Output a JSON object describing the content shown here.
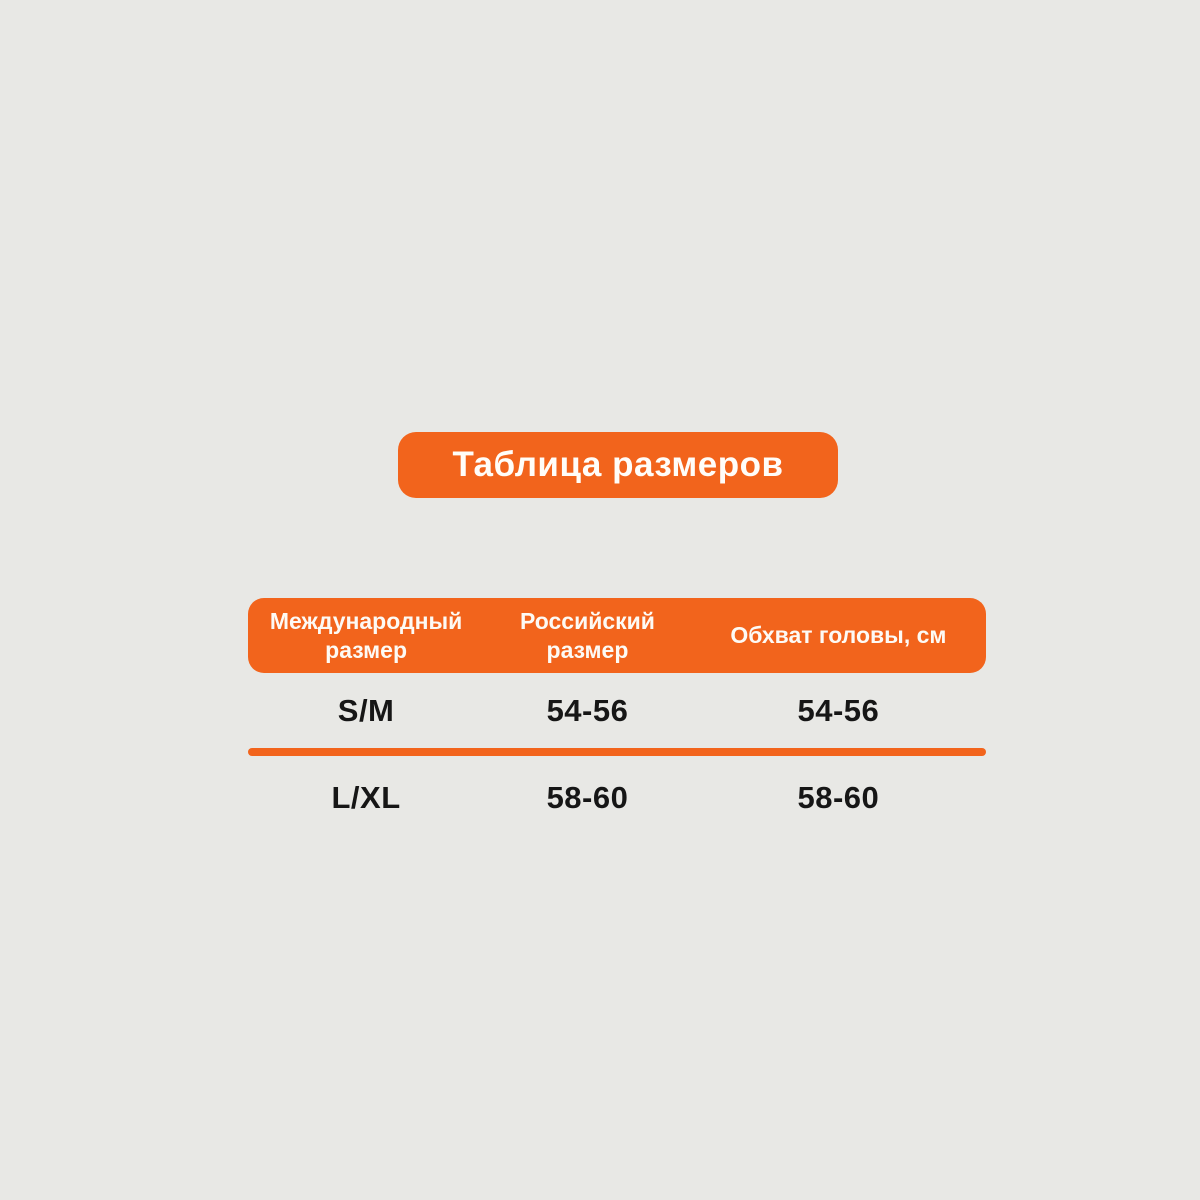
{
  "page": {
    "background_color": "#e8e8e5",
    "accent_color": "#f2641c",
    "text_color": "#161616"
  },
  "title": {
    "label": "Таблица размеров"
  },
  "table": {
    "header": {
      "columns": [
        {
          "label": "Международный размер"
        },
        {
          "label": "Российский размер"
        },
        {
          "label": "Обхват головы, см"
        }
      ]
    },
    "rows": [
      {
        "international": "S/M",
        "russian": "54-56",
        "head_cm": "54-56"
      },
      {
        "international": "L/XL",
        "russian": "58-60",
        "head_cm": "58-60"
      }
    ]
  }
}
